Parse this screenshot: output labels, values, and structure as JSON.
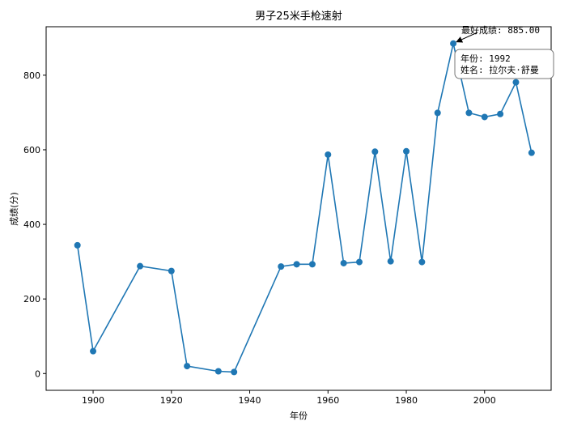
{
  "chart_data": {
    "type": "line",
    "title": "男子25米手枪速射",
    "xlabel": "年份",
    "ylabel": "成绩(分)",
    "xlim": [
      1888,
      2017
    ],
    "ylim": [
      -45,
      930
    ],
    "xticks": [
      1900,
      1920,
      1940,
      1960,
      1980,
      2000
    ],
    "yticks": [
      0,
      200,
      400,
      600,
      800
    ],
    "grid": false,
    "color": "#1f77b4",
    "x": [
      1896,
      1900,
      1912,
      1920,
      1924,
      1932,
      1936,
      1948,
      1952,
      1956,
      1960,
      1964,
      1968,
      1972,
      1976,
      1980,
      1984,
      1988,
      1992,
      1996,
      2000,
      2004,
      2008,
      2012
    ],
    "y": [
      344,
      60,
      288,
      275,
      20,
      6,
      4,
      287,
      293,
      293,
      587,
      296,
      299,
      595,
      301,
      596,
      299,
      699,
      885,
      699,
      688,
      696,
      781,
      592
    ],
    "annotation_best": "最好成绩: 885.00",
    "annotation_box_lines": [
      "年份: 1992",
      "姓名: 拉尔夫·舒曼"
    ]
  }
}
